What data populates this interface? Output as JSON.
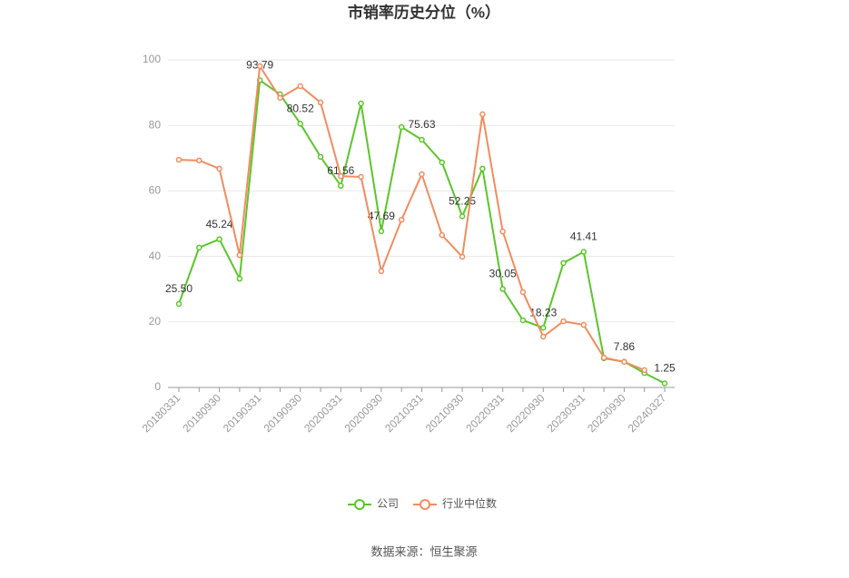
{
  "chart_data": {
    "type": "line",
    "title": "市销率历史分位（%）",
    "categories": [
      "20180331",
      null,
      "20180930",
      null,
      "20190331",
      null,
      "20190930",
      null,
      "20200331",
      null,
      "20200930",
      null,
      "20210331",
      null,
      "20210930",
      null,
      "20220331",
      null,
      "20220930",
      null,
      "20230331",
      null,
      "20230930",
      null,
      "20240327"
    ],
    "series": [
      {
        "name": "公司",
        "color": "#5cc52a",
        "values": [
          25.5,
          42.7,
          45.24,
          33.2,
          93.79,
          89.5,
          80.52,
          70.4,
          61.56,
          86.7,
          47.69,
          79.5,
          75.63,
          68.7,
          52.25,
          66.8,
          30.05,
          20.5,
          18.23,
          38.0,
          41.41,
          8.9,
          7.86,
          4.4,
          1.25
        ],
        "value_labels": [
          "25.50",
          null,
          "45.24",
          null,
          "93.79",
          null,
          "80.52",
          null,
          "61.56",
          null,
          "47.69",
          null,
          "75.63",
          null,
          "52.25",
          null,
          "30.05",
          null,
          "18.23",
          null,
          "41.41",
          null,
          "7.86",
          null,
          "1.25"
        ]
      },
      {
        "name": "行业中位数",
        "color": "#f28c5f",
        "values": [
          69.5,
          69.3,
          66.8,
          40.4,
          98.1,
          88.4,
          92.0,
          87.0,
          64.5,
          64.3,
          35.5,
          51.2,
          65.1,
          46.5,
          39.9,
          83.4,
          47.6,
          29.1,
          15.5,
          20.2,
          19.1,
          9.1,
          7.8,
          5.3,
          null
        ]
      }
    ],
    "ylim": [
      0,
      100
    ],
    "yticks": [
      0,
      20,
      40,
      60,
      80,
      100
    ],
    "grid": true,
    "legend": "bottom",
    "source": "数据来源：恒生聚源"
  }
}
